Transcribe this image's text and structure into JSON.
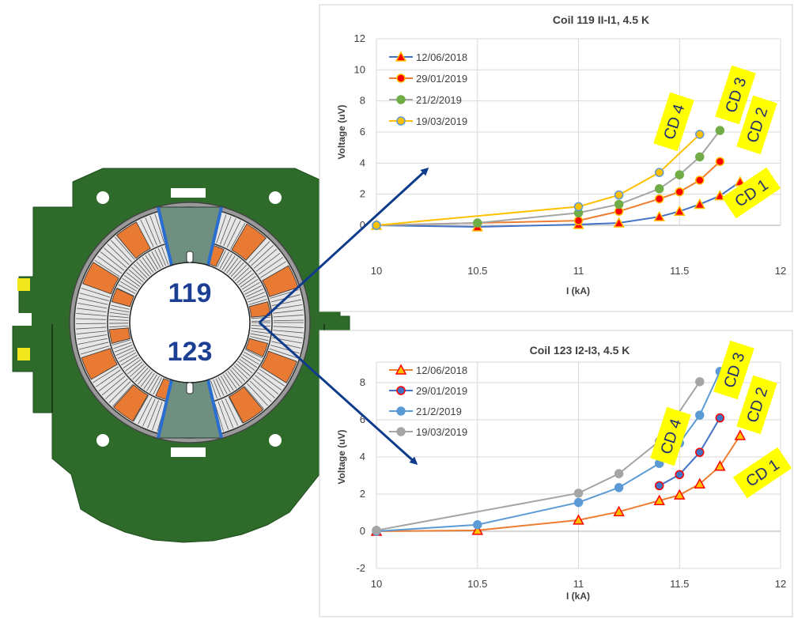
{
  "coils": {
    "upper_label": "119",
    "lower_label": "123"
  },
  "colors": {
    "yoke_green": "#2e6b2a",
    "coil_orange": "#e87a34",
    "pole_gray": "#6f8f80",
    "cable_blue": "#2a6fd0",
    "pad_yellow": "#f2e61c",
    "arrow_blue": "#0e3b8c",
    "callout_yellow": "#ffff00",
    "callout_text": "#1f2f6e"
  },
  "chart_data": [
    {
      "type": "line",
      "title": "Coil 119 II-I1, 4.5 K",
      "xlabel": "I (kA)",
      "ylabel": "Voltage (uV)",
      "xlim": [
        10,
        12
      ],
      "ylim": [
        0,
        12
      ],
      "xticks": [
        "10",
        "10.5",
        "11",
        "11.5",
        "12"
      ],
      "yticks": [
        "0",
        "2",
        "4",
        "6",
        "8",
        "10",
        "12"
      ],
      "grid": true,
      "legend_position": "top-left",
      "series": [
        {
          "name": "12/06/2018",
          "color": "#4472c4",
          "marker": "triangle",
          "marker_fill": "#ff0000",
          "marker_edge": "#ffc000",
          "x": [
            10,
            10.5,
            11,
            11.2,
            11.4,
            11.5,
            11.6,
            11.7,
            11.8
          ],
          "y": [
            0,
            -0.1,
            0.05,
            0.15,
            0.55,
            0.9,
            1.35,
            1.9,
            2.8
          ]
        },
        {
          "name": "29/01/2019",
          "color": "#ed7d31",
          "marker": "circle",
          "marker_fill": "#ff0000",
          "marker_edge": "#ffc000",
          "x": [
            10,
            11,
            11.2,
            11.4,
            11.5,
            11.6,
            11.7
          ],
          "y": [
            0,
            0.3,
            0.9,
            1.7,
            2.15,
            2.9,
            4.1
          ]
        },
        {
          "name": "21/2/2019",
          "color": "#a5a5a5",
          "marker": "circle",
          "marker_fill": "#70ad47",
          "marker_edge": "#70ad47",
          "x": [
            10,
            10.5,
            11,
            11.2,
            11.4,
            11.5,
            11.6,
            11.7
          ],
          "y": [
            0,
            0.15,
            0.8,
            1.35,
            2.35,
            3.25,
            4.4,
            6.1
          ]
        },
        {
          "name": "19/03/2019",
          "color": "#ffc000",
          "marker": "circle",
          "marker_fill": "#ffc000",
          "marker_edge": "#5b9bd5",
          "x": [
            10,
            11,
            11.2,
            11.4,
            11.6
          ],
          "y": [
            0,
            1.2,
            1.95,
            3.4,
            5.85
          ]
        }
      ],
      "callouts": [
        "CD 4",
        "CD 3",
        "CD 2",
        "CD 1"
      ]
    },
    {
      "type": "line",
      "title": "Coil 123 I2-I3, 4.5 K",
      "xlabel": "I (kA)",
      "ylabel": "Voltage (uV)",
      "xlim": [
        10,
        12
      ],
      "ylim": [
        -2,
        10
      ],
      "xticks": [
        "10",
        "10.5",
        "11",
        "11.5",
        "12"
      ],
      "yticks": [
        "-2",
        "0",
        "2",
        "4",
        "6",
        "8"
      ],
      "grid": true,
      "legend_position": "top-left",
      "series": [
        {
          "name": "12/06/2018",
          "color": "#ed7d31",
          "marker": "triangle",
          "marker_fill": "#ffc000",
          "marker_edge": "#ff0000",
          "x": [
            10,
            10.5,
            11,
            11.2,
            11.4,
            11.5,
            11.6,
            11.7,
            11.8
          ],
          "y": [
            0,
            0.05,
            0.6,
            1.05,
            1.65,
            1.95,
            2.55,
            3.5,
            5.15
          ]
        },
        {
          "name": "29/01/2019",
          "color": "#4472c4",
          "marker": "circle",
          "marker_fill": "#4472c4",
          "marker_edge": "#ff0000",
          "x": [
            11.4,
            11.5,
            11.6,
            11.7
          ],
          "y": [
            2.45,
            3.05,
            4.25,
            6.1
          ]
        },
        {
          "name": "21/2/2019",
          "color": "#5b9bd5",
          "marker": "circle",
          "marker_fill": "#5b9bd5",
          "marker_edge": "#5b9bd5",
          "x": [
            10,
            10.5,
            11,
            11.2,
            11.4,
            11.5,
            11.6,
            11.7
          ],
          "y": [
            0,
            0.35,
            1.55,
            2.35,
            3.65,
            4.75,
            6.25,
            8.6
          ]
        },
        {
          "name": "19/03/2019",
          "color": "#a5a5a5",
          "marker": "circle",
          "marker_fill": "#a5a5a5",
          "marker_edge": "#a5a5a5",
          "x": [
            10,
            11,
            11.2,
            11.4,
            11.6
          ],
          "y": [
            0.05,
            2.05,
            3.1,
            4.85,
            8.05
          ]
        }
      ],
      "callouts": [
        "CD 4",
        "CD 3",
        "CD 2",
        "CD 1"
      ]
    }
  ]
}
